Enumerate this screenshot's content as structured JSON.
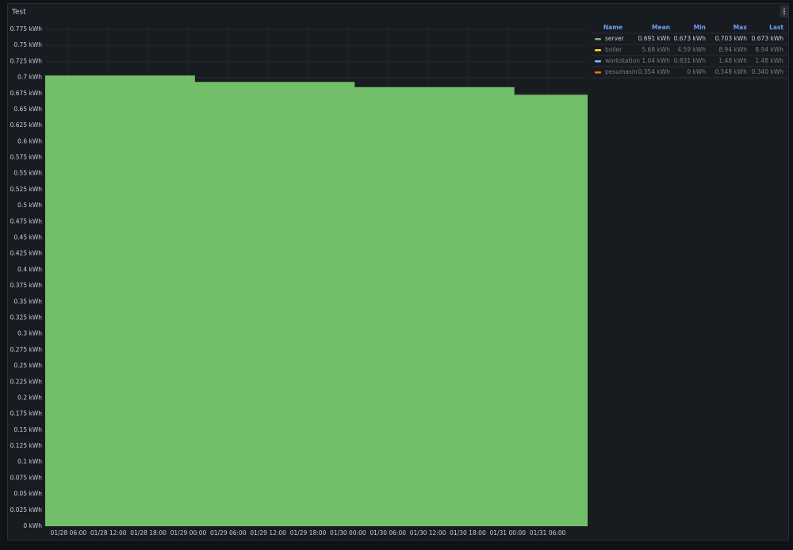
{
  "chart_data": {
    "type": "step-area",
    "title": "Test",
    "x": [
      "01/28 02:30",
      "01/29 01:00",
      "01/30 01:00",
      "01/31 01:00"
    ],
    "xlim": [
      "01/28 02:30",
      "01/31 12:00"
    ],
    "xticks": [
      "01/28 06:00",
      "01/28 12:00",
      "01/28 18:00",
      "01/29 00:00",
      "01/29 06:00",
      "01/29 12:00",
      "01/29 18:00",
      "01/30 00:00",
      "01/30 06:00",
      "01/30 12:00",
      "01/30 18:00",
      "01/31 00:00",
      "01/31 06:00"
    ],
    "ylim": [
      0,
      0.775
    ],
    "yticks": [
      {
        "value": 0,
        "label": "0 kWh"
      },
      {
        "value": 0.025,
        "label": "0.025 kWh"
      },
      {
        "value": 0.05,
        "label": "0.05 kWh"
      },
      {
        "value": 0.075,
        "label": "0.075 kWh"
      },
      {
        "value": 0.1,
        "label": "0.1 kWh"
      },
      {
        "value": 0.125,
        "label": "0.125 kWh"
      },
      {
        "value": 0.15,
        "label": "0.15 kWh"
      },
      {
        "value": 0.175,
        "label": "0.175 kWh"
      },
      {
        "value": 0.2,
        "label": "0.2 kWh"
      },
      {
        "value": 0.225,
        "label": "0.225 kWh"
      },
      {
        "value": 0.25,
        "label": "0.25 kWh"
      },
      {
        "value": 0.275,
        "label": "0.275 kWh"
      },
      {
        "value": 0.3,
        "label": "0.3 kWh"
      },
      {
        "value": 0.325,
        "label": "0.325 kWh"
      },
      {
        "value": 0.35,
        "label": "0.35 kWh"
      },
      {
        "value": 0.375,
        "label": "0.375 kWh"
      },
      {
        "value": 0.4,
        "label": "0.4 kWh"
      },
      {
        "value": 0.425,
        "label": "0.425 kWh"
      },
      {
        "value": 0.45,
        "label": "0.45 kWh"
      },
      {
        "value": 0.475,
        "label": "0.475 kWh"
      },
      {
        "value": 0.5,
        "label": "0.5 kWh"
      },
      {
        "value": 0.525,
        "label": "0.525 kWh"
      },
      {
        "value": 0.55,
        "label": "0.55 kWh"
      },
      {
        "value": 0.575,
        "label": "0.575 kWh"
      },
      {
        "value": 0.6,
        "label": "0.6 kWh"
      },
      {
        "value": 0.625,
        "label": "0.625 kWh"
      },
      {
        "value": 0.65,
        "label": "0.65 kWh"
      },
      {
        "value": 0.675,
        "label": "0.675 kWh"
      },
      {
        "value": 0.7,
        "label": "0.7 kWh"
      },
      {
        "value": 0.725,
        "label": "0.725 kWh"
      },
      {
        "value": 0.75,
        "label": "0.75 kWh"
      },
      {
        "value": 0.775,
        "label": "0.775 kWh"
      }
    ],
    "grid": true,
    "legend_columns": [
      "Name",
      "Mean",
      "Min",
      "Max",
      "Last"
    ],
    "series": [
      {
        "name": "server",
        "color": "#73bf69",
        "values": [
          0.703,
          0.693,
          0.685,
          0.673
        ],
        "stats": [
          "0.691 kWh",
          "0.673 kWh",
          "0.703 kWh",
          "0.673 kWh"
        ]
      },
      {
        "name": "boiler",
        "color": "#fade2a",
        "hidden": true,
        "stats": [
          "5.68 kWh",
          "4.59 kWh",
          "8.94 kWh",
          "8.94 kWh"
        ]
      },
      {
        "name": "workstation",
        "color": "#8ab8ff",
        "hidden": true,
        "stats": [
          "1.04 kWh",
          "0.831 kWh",
          "1.48 kWh",
          "1.48 kWh"
        ]
      },
      {
        "name": "pesumasin",
        "color": "#ff780a",
        "hidden": true,
        "stats": [
          "0.354 kWh",
          "0 kWh",
          "0.548 kWh",
          "0.340 kWh"
        ]
      }
    ]
  }
}
